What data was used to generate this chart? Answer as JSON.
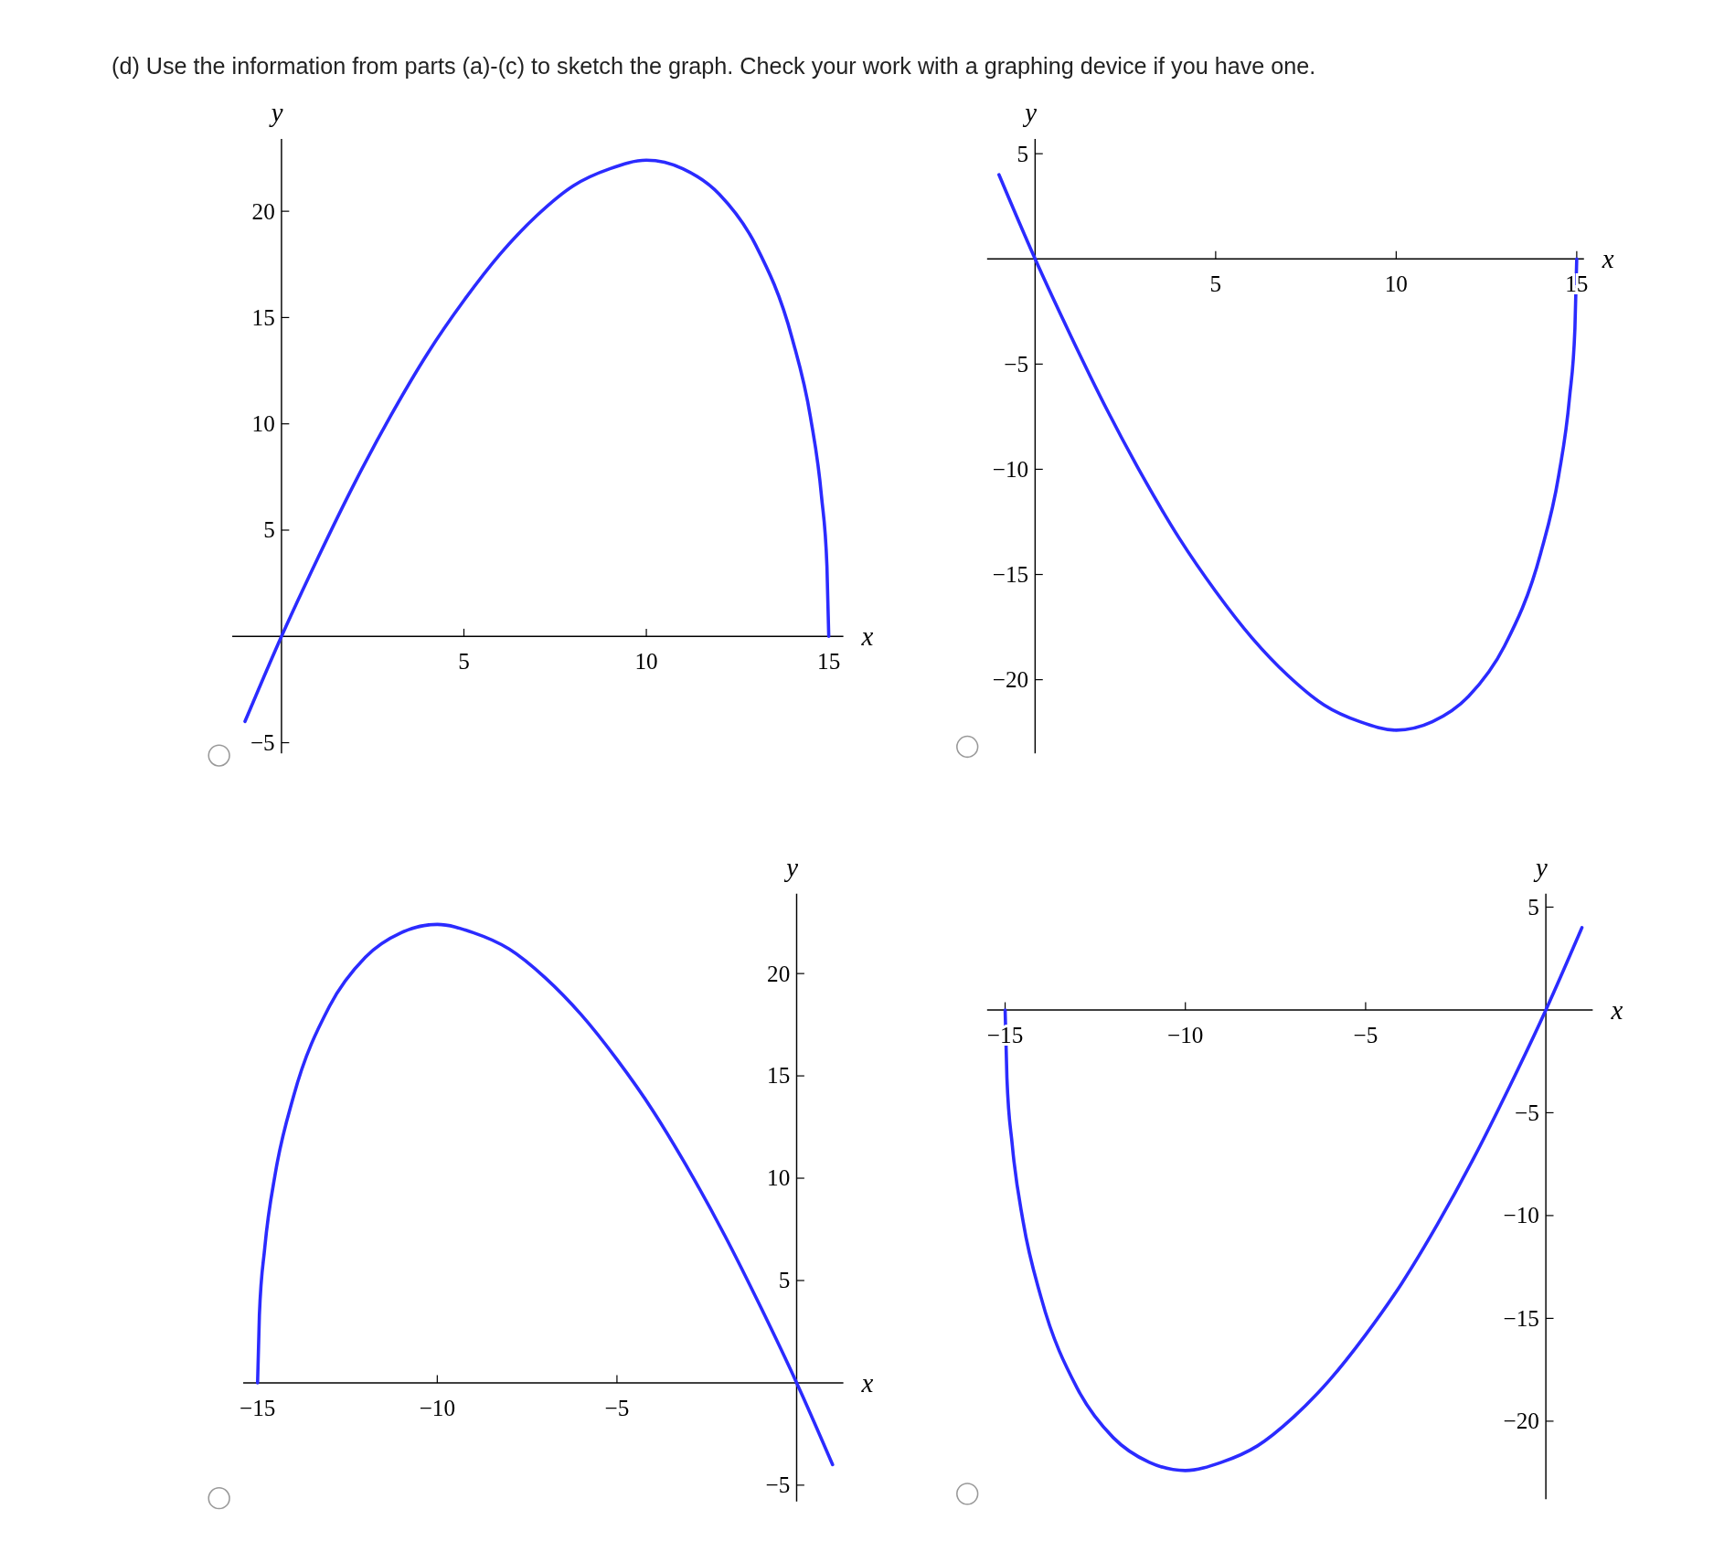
{
  "chart_data": [
    {
      "type": "line",
      "title": "(d) Use the information from parts (a)-(c) to sketch the graph. Check your work with a graphing device if you have one.",
      "xlabel": "x",
      "ylabel": "y",
      "color": "#2b2bff",
      "xlim": [
        -1.35,
        15.4
      ],
      "ylim": [
        -5.5,
        23.4
      ],
      "xticks": [
        5,
        10,
        15
      ],
      "yticks": [
        -5,
        5,
        10,
        15,
        20
      ],
      "x": [
        -1,
        0,
        1,
        2,
        3,
        4,
        5,
        6,
        7,
        8,
        9,
        10,
        11,
        12,
        13,
        14,
        14.5,
        14.8,
        14.95,
        15
      ],
      "values": [
        -4,
        0,
        3.7,
        7.2,
        10.4,
        13.3,
        15.8,
        18,
        19.8,
        21.2,
        22.0,
        22.4,
        22,
        20.8,
        18.4,
        14,
        10.3,
        6.6,
        3.3,
        0
      ]
    },
    {
      "type": "line",
      "xlabel": "x",
      "ylabel": "y",
      "color": "#2b2bff",
      "xlim": [
        -1.33,
        15.2
      ],
      "ylim": [
        -23.5,
        5.7
      ],
      "xticks": [
        5,
        10,
        15
      ],
      "yticks": [
        -20,
        -15,
        -10,
        -5,
        5
      ],
      "x": [
        -1,
        0,
        1,
        2,
        3,
        4,
        5,
        6,
        7,
        8,
        9,
        10,
        11,
        12,
        13,
        14,
        14.5,
        14.8,
        14.95,
        15
      ],
      "values": [
        4,
        0,
        -3.7,
        -7.2,
        -10.4,
        -13.3,
        -15.8,
        -18,
        -19.8,
        -21.2,
        -22.0,
        -22.4,
        -22,
        -20.8,
        -18.4,
        -14,
        -10.3,
        -6.6,
        -3.3,
        0
      ]
    },
    {
      "type": "line",
      "xlabel": "x",
      "ylabel": "y",
      "color": "#2b2bff",
      "xlim": [
        -15.4,
        1.3
      ],
      "ylim": [
        -5.8,
        23.9
      ],
      "xticks": [
        -15,
        -10,
        -5
      ],
      "yticks": [
        -5,
        5,
        10,
        15,
        20
      ],
      "x": [
        -15,
        -14.95,
        -14.8,
        -14.5,
        -14,
        -13,
        -12,
        -11,
        -10,
        -9,
        -8,
        -7,
        -6,
        -5,
        -4,
        -3,
        -2,
        -1,
        0,
        1
      ],
      "values": [
        0,
        3.3,
        6.6,
        10.3,
        14,
        18.4,
        20.8,
        22,
        22.4,
        22.0,
        21.2,
        19.8,
        18,
        15.8,
        13.3,
        10.4,
        7.2,
        3.7,
        0,
        -4
      ]
    },
    {
      "type": "line",
      "xlabel": "x",
      "ylabel": "y",
      "color": "#2b2bff",
      "xlim": [
        -15.5,
        1.3
      ],
      "ylim": [
        -23.8,
        5.65
      ],
      "xticks": [
        -15,
        -10,
        -5
      ],
      "yticks": [
        -20,
        -15,
        -10,
        -5,
        5
      ],
      "x": [
        -15,
        -14.95,
        -14.8,
        -14.5,
        -14,
        -13,
        -12,
        -11,
        -10,
        -9,
        -8,
        -7,
        -6,
        -5,
        -4,
        -3,
        -2,
        -1,
        0,
        1
      ],
      "values": [
        0,
        -3.3,
        -6.6,
        -10.3,
        -14,
        -18.4,
        -20.8,
        -22,
        -22.4,
        -22.0,
        -21.2,
        -19.8,
        -18,
        -15.8,
        -13.3,
        -10.4,
        -7.2,
        -3.7,
        0,
        4
      ]
    }
  ]
}
